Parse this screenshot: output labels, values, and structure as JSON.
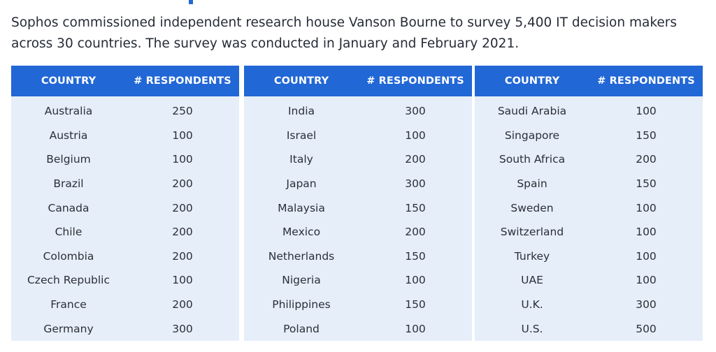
{
  "intro_text": "Sophos commissioned independent research house Vanson Bourne to survey 5,400 IT decision makers across 30 countries. The survey was conducted in January and February 2021.",
  "headers": {
    "country": "COUNTRY",
    "respondents": "# RESPONDENTS"
  },
  "tables": [
    {
      "rows": [
        {
          "country": "Australia",
          "respondents": "250"
        },
        {
          "country": "Austria",
          "respondents": "100"
        },
        {
          "country": "Belgium",
          "respondents": "100"
        },
        {
          "country": "Brazil",
          "respondents": "200"
        },
        {
          "country": "Canada",
          "respondents": "200"
        },
        {
          "country": "Chile",
          "respondents": "200"
        },
        {
          "country": "Colombia",
          "respondents": "200"
        },
        {
          "country": "Czech Republic",
          "respondents": "100"
        },
        {
          "country": "France",
          "respondents": "200"
        },
        {
          "country": "Germany",
          "respondents": "300"
        }
      ]
    },
    {
      "rows": [
        {
          "country": "India",
          "respondents": "300"
        },
        {
          "country": "Israel",
          "respondents": "100"
        },
        {
          "country": "Italy",
          "respondents": "200"
        },
        {
          "country": "Japan",
          "respondents": "300"
        },
        {
          "country": "Malaysia",
          "respondents": "150"
        },
        {
          "country": "Mexico",
          "respondents": "200"
        },
        {
          "country": "Netherlands",
          "respondents": "150"
        },
        {
          "country": "Nigeria",
          "respondents": "100"
        },
        {
          "country": "Philippines",
          "respondents": "150"
        },
        {
          "country": "Poland",
          "respondents": "100"
        }
      ]
    },
    {
      "rows": [
        {
          "country": "Saudi Arabia",
          "respondents": "100"
        },
        {
          "country": "Singapore",
          "respondents": "150"
        },
        {
          "country": "South Africa",
          "respondents": "200"
        },
        {
          "country": "Spain",
          "respondents": "150"
        },
        {
          "country": "Sweden",
          "respondents": "100"
        },
        {
          "country": "Switzerland",
          "respondents": "100"
        },
        {
          "country": "Turkey",
          "respondents": "100"
        },
        {
          "country": "UAE",
          "respondents": "100"
        },
        {
          "country": "U.K.",
          "respondents": "300"
        },
        {
          "country": "U.S.",
          "respondents": "500"
        }
      ]
    }
  ],
  "colors": {
    "header_bg": "#2167d6",
    "table_bg": "#e6eef9",
    "text": "#262b36"
  }
}
